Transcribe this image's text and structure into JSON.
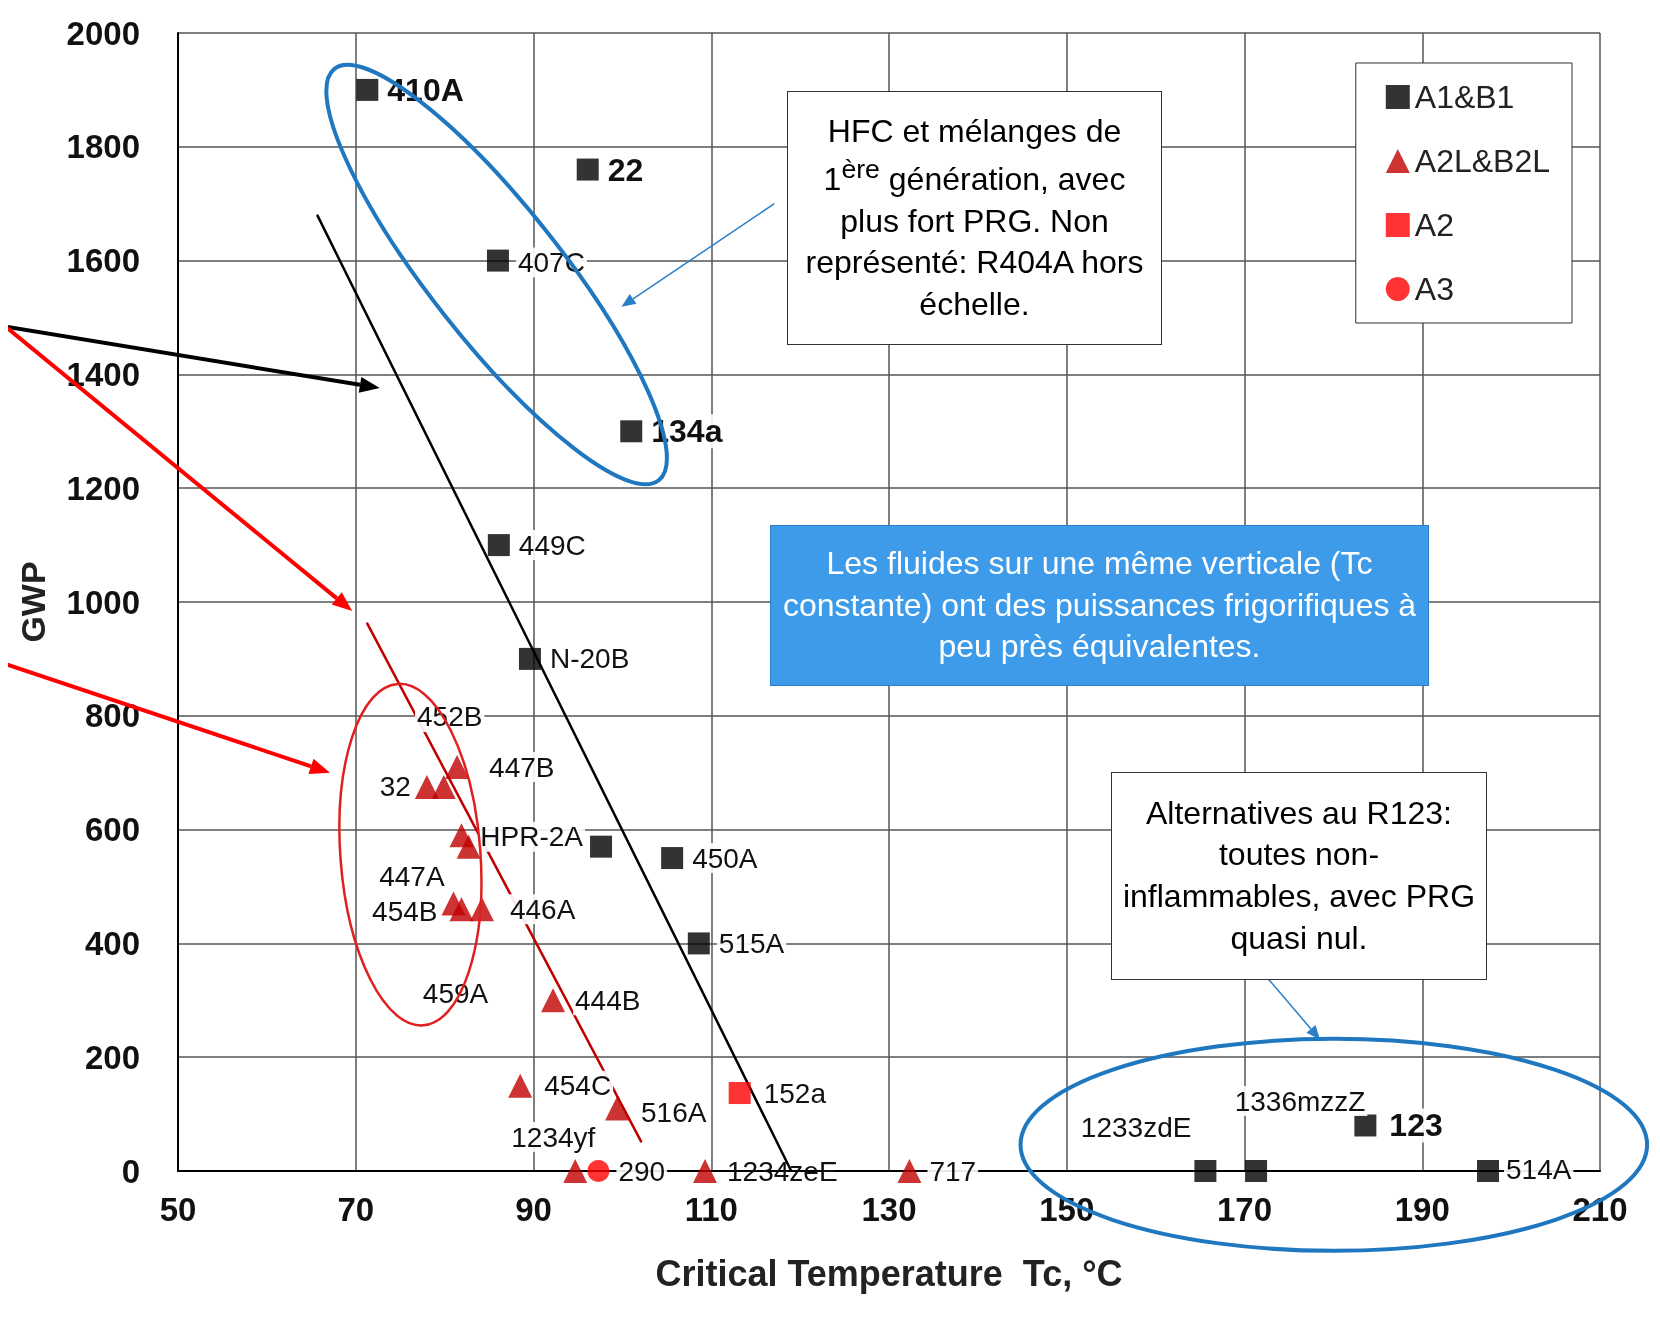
{
  "chart_data": {
    "type": "scatter",
    "xlabel": "Critical Temperature  Tc, °C",
    "ylabel": "GWP",
    "xlim": [
      50,
      210
    ],
    "xticks": [
      50,
      70,
      90,
      110,
      130,
      150,
      170,
      190,
      210
    ],
    "ylim": [
      0,
      2000
    ],
    "yticks": [
      0,
      200,
      400,
      600,
      800,
      1000,
      1200,
      1400,
      1600,
      1800,
      2000
    ],
    "grid": true,
    "legend": "top right",
    "series": [
      {
        "name": "A1&B1",
        "color": "#000000",
        "marker": "square",
        "x": [
          71.3,
          96.1,
          86.0,
          101.0,
          86.1,
          89.6,
          97.6,
          105.6,
          108.6,
          165.6,
          171.3,
          183.6,
          197.4
        ],
        "values": [
          1900,
          1760,
          1600,
          1300,
          1100,
          900,
          570,
          550,
          400,
          0,
          0,
          80,
          0
        ]
      },
      {
        "name": "A2L&B2L",
        "color": "#c00000",
        "marker": "triangle",
        "x": [
          78.0,
          79.9,
          81.4,
          81.9,
          82.7,
          81.0,
          81.9,
          84.2,
          92.2,
          88.5,
          99.4,
          94.7,
          109.3,
          132.3
        ],
        "values": [
          675,
          675,
          710,
          590,
          570,
          470,
          460,
          460,
          300,
          150,
          110,
          0,
          0,
          0
        ]
      },
      {
        "name": "A2",
        "color": "#ff0000",
        "marker": "square",
        "x": [
          113.2
        ],
        "values": [
          137
        ]
      },
      {
        "name": "A3",
        "color": "#ff0000",
        "marker": "circle",
        "x": [
          97.3
        ],
        "values": [
          0
        ]
      },
      {
        "type": "line",
        "color": "#000000",
        "marker": "none",
        "line_style": "solid",
        "x": [
          65.7,
          119.0
        ],
        "values": [
          1679,
          0
        ]
      },
      {
        "type": "line",
        "color": "#c00000",
        "marker": "none",
        "line_style": "solid",
        "x": [
          71.3,
          102.1
        ],
        "values": [
          962,
          52
        ]
      }
    ],
    "annotations": [
      "HFC et mélanges de 1$^{ère}$ génération, avec plus fort PRG. Non représenté: R404A hors échelle.",
      "Les fluides sur une même verticale (Tc constante) ont des puissances frigorifiques à peu près équivalentes.",
      "Alternatives au R123: toutes non-inflammables, avec PRG quasi nul.",
      {
        "text": "410A",
        "x": 71.3,
        "y": 1900
      },
      {
        "text": "22",
        "x": 96.1,
        "y": 1760
      },
      {
        "text": "407C",
        "x": 86.0,
        "y": 1600
      },
      {
        "text": "134a",
        "x": 101.0,
        "y": 1300
      },
      {
        "text": "449C",
        "x": 86.1,
        "y": 1100
      },
      {
        "text": "N-20B",
        "x": 89.6,
        "y": 900
      },
      {
        "text": "HPR-2A",
        "x": 97.6,
        "y": 570
      },
      {
        "text": "450A",
        "x": 105.6,
        "y": 550
      },
      {
        "text": "515A",
        "x": 108.6,
        "y": 400
      },
      {
        "text": "1233zdE",
        "x": 165.6,
        "y": 0
      },
      {
        "text": "1336mzzZ",
        "x": 171.3,
        "y": 0
      },
      {
        "text": "123",
        "x": 183.6,
        "y": 80
      },
      {
        "text": "514A",
        "x": 197.4,
        "y": 0
      },
      {
        "text": "32",
        "x": 78.0,
        "y": 675
      },
      {
        "text": "452B",
        "x": 79.9,
        "y": 675
      },
      {
        "text": "447B",
        "x": 81.4,
        "y": 710
      },
      {
        "text": "447A",
        "x": 82.7,
        "y": 570
      },
      {
        "text": "454B",
        "x": 81.0,
        "y": 470
      },
      {
        "text": "459A",
        "x": 81.9,
        "y": 460
      },
      {
        "text": "446A",
        "x": 84.2,
        "y": 460
      },
      {
        "text": "444B",
        "x": 92.2,
        "y": 300
      },
      {
        "text": "454C",
        "x": 88.5,
        "y": 150
      },
      {
        "text": "516A",
        "x": 99.4,
        "y": 110
      },
      {
        "text": "1234yf",
        "x": 94.7,
        "y": 0
      },
      {
        "text": "1234zeE",
        "x": 109.3,
        "y": 0
      },
      {
        "text": "717",
        "x": 132.3,
        "y": 0
      },
      {
        "text": "152a",
        "x": 113.2,
        "y": 137
      },
      {
        "text": "290",
        "x": 97.3,
        "y": 0
      }
    ]
  }
}
